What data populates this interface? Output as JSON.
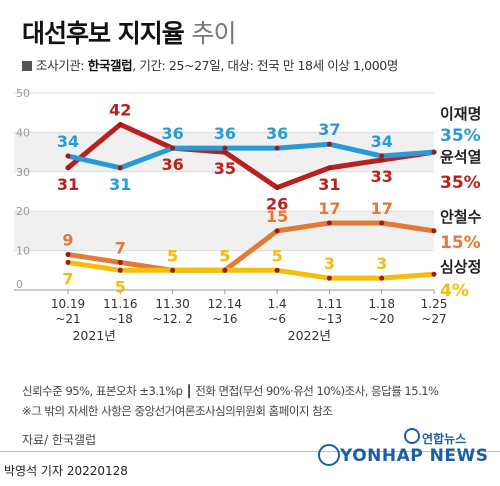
{
  "title_main": "대선후보 지지율",
  "title_light": "추이",
  "subtitle_prefix": "조사기관:",
  "subtitle_agency": "한국갤럽",
  "subtitle_rest": ", 기간: 25~27일, 대상: 전국 만 18세 이상 1,000명",
  "footnote1": "신뢰수준 95%, 표본오차 ±3.1%p ┃ 전화 면접(무선 90%·유선 10%)조사, 응답률 15.1%",
  "footnote2": "※그 밖의 자세한 사항은 중앙선거여론조사심의위원회 홈페이지 참조",
  "source": "자료/ 한국갤럽",
  "byline": "박영석 기자  20220128",
  "logo_agency": "연합뉴스",
  "logo_text": "YONHAP NEWS",
  "colors": {
    "lee": "#2a9ad6",
    "yoon": "#b8211e",
    "ahn": "#e07a35",
    "shim": "#f4bd0c"
  },
  "chart_data": {
    "type": "line",
    "categories": [
      "10.19~21",
      "11.16~18",
      "11.30~12. 2",
      "12.14~16",
      "1.4~6",
      "1.11~13",
      "1.18~20",
      "1.25~27"
    ],
    "category_lines": [
      [
        "10.19",
        "~21"
      ],
      [
        "11.16",
        "~18"
      ],
      [
        "11.30",
        "~12. 2"
      ],
      [
        "12.14",
        "~16"
      ],
      [
        "1.4",
        "~6"
      ],
      [
        "1.11",
        "~13"
      ],
      [
        "1.18",
        "~20"
      ],
      [
        "1.25",
        "~27"
      ]
    ],
    "year_labels": [
      "2021년",
      "2022년"
    ],
    "ylim": [
      0,
      50
    ],
    "yticks": [
      0,
      10,
      20,
      30,
      40,
      50
    ],
    "series": [
      {
        "name": "이재명",
        "key": "lee",
        "values": [
          34,
          31,
          36,
          36,
          36,
          37,
          34,
          35
        ],
        "final_label": "35%"
      },
      {
        "name": "윤석열",
        "key": "yoon",
        "values": [
          31,
          42,
          36,
          35,
          26,
          31,
          33,
          35
        ],
        "final_label": "35%"
      },
      {
        "name": "안철수",
        "key": "ahn",
        "values": [
          9,
          7,
          5,
          5,
          15,
          17,
          17,
          15
        ],
        "final_label": "15%"
      },
      {
        "name": "심상정",
        "key": "shim",
        "values": [
          7,
          5,
          5,
          5,
          5,
          3,
          3,
          4
        ],
        "final_label": "4%"
      }
    ]
  }
}
